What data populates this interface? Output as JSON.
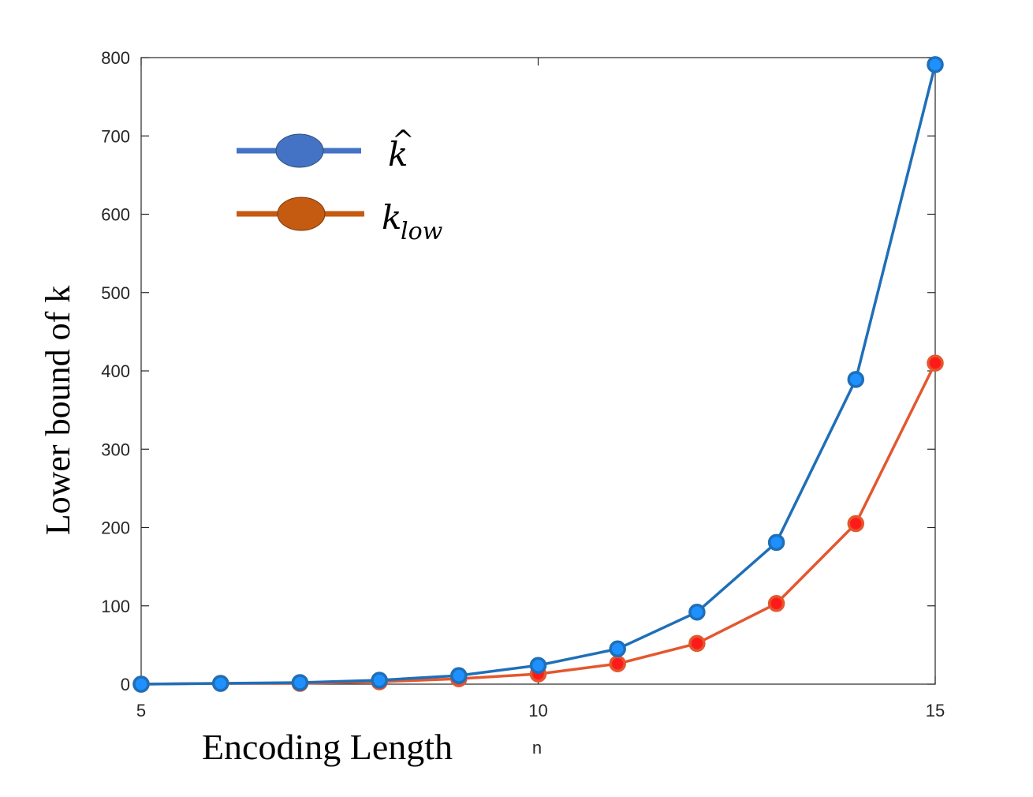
{
  "chart_data": {
    "type": "line",
    "xlabel": "Encoding Length",
    "xlabel_secondary": "n",
    "ylabel": "Lower bound of k",
    "xlim": [
      5,
      15
    ],
    "ylim": [
      0,
      800
    ],
    "xticks": [
      5,
      10,
      15
    ],
    "yticks": [
      0,
      100,
      200,
      300,
      400,
      500,
      600,
      700,
      800
    ],
    "grid": false,
    "legend_position": "top-left",
    "x": [
      5,
      6,
      7,
      8,
      9,
      10,
      11,
      12,
      13,
      14,
      15
    ],
    "series": [
      {
        "name": "k̂",
        "name_base": "k",
        "name_accent": "^",
        "color": "#1f6fb8",
        "marker_fill": "#1e90ff",
        "values": [
          0,
          1,
          2,
          5,
          11,
          24,
          45,
          92,
          181,
          389,
          791
        ]
      },
      {
        "name": "k_low",
        "name_base": "k",
        "name_sub": "low",
        "color": "#e4572e",
        "marker_fill": "#ff1a1a",
        "values": [
          0,
          1,
          1,
          3,
          7,
          13,
          26,
          52,
          103,
          205,
          410
        ]
      }
    ]
  },
  "legend": {
    "blue_swatch_color": "#4472c4",
    "orange_swatch_color": "#c55a11"
  }
}
